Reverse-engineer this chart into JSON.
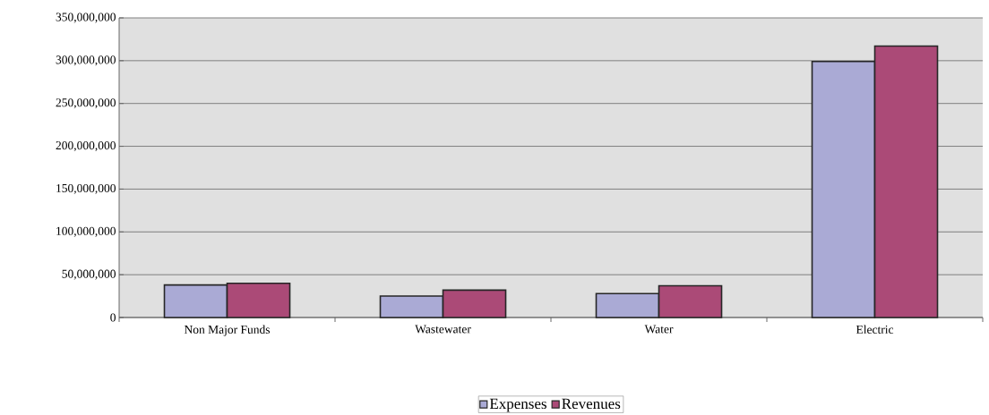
{
  "chart_data": {
    "type": "bar",
    "categories": [
      "Non Major Funds",
      "Wastewater",
      "Water",
      "Electric"
    ],
    "series": [
      {
        "name": "Expenses",
        "color": "#aaaad5",
        "values": [
          38000000,
          25000000,
          28000000,
          299000000
        ]
      },
      {
        "name": "Revenues",
        "color": "#ab4a77",
        "values": [
          40000000,
          32000000,
          37000000,
          317000000
        ]
      }
    ],
    "ylim": [
      0,
      350000000
    ],
    "yticks": [
      {
        "value": 0,
        "label": "0"
      },
      {
        "value": 50000000,
        "label": "50,000,000"
      },
      {
        "value": 100000000,
        "label": "100,000,000"
      },
      {
        "value": 150000000,
        "label": "150,000,000"
      },
      {
        "value": 200000000,
        "label": "200,000,000"
      },
      {
        "value": 250000000,
        "label": "250,000,000"
      },
      {
        "value": 300000000,
        "label": "300,000,000"
      },
      {
        "value": 350000000,
        "label": "350,000,000"
      }
    ],
    "grid": "y",
    "legend": "bottom"
  }
}
